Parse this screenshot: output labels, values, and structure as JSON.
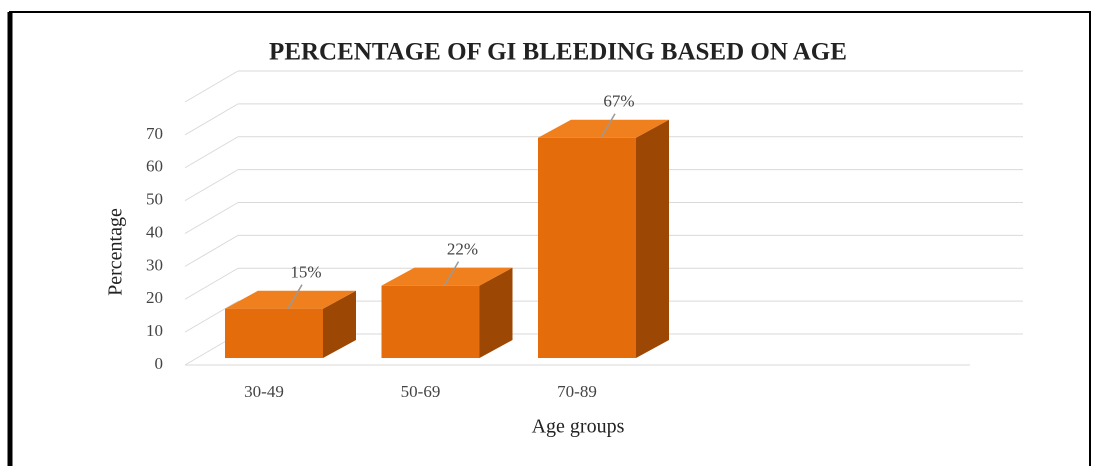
{
  "chart_data": {
    "type": "bar3d",
    "title": "PERCENTAGE OF GI BLEEDING BASED ON AGE",
    "x_label": "Age groups",
    "y_label": "Percentage",
    "categories": [
      "30-49",
      "50-69",
      "70-89"
    ],
    "values": [
      15,
      22,
      67
    ],
    "value_labels": [
      "15%",
      "22%",
      "67%"
    ],
    "color": "#e46c0a",
    "ylim": [
      0,
      80
    ],
    "yticks": [
      0,
      10,
      20,
      30,
      40,
      50,
      60,
      70
    ],
    "grid": true
  }
}
